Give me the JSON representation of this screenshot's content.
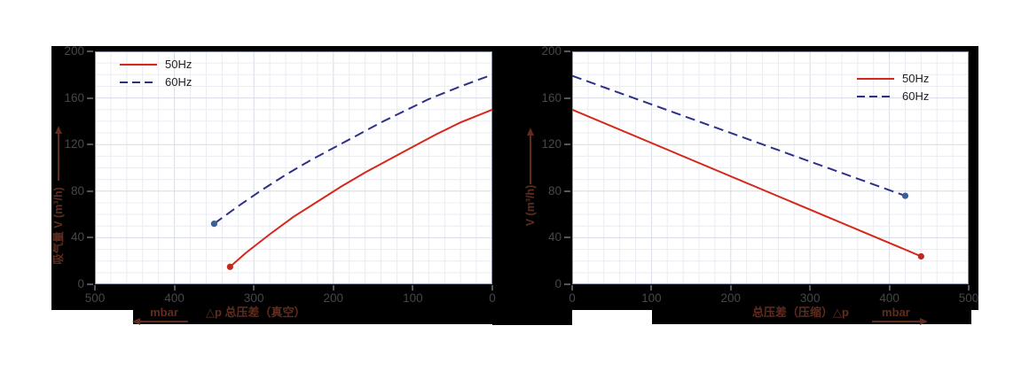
{
  "frame_color": "#000000",
  "tick_color": "#46474b",
  "axis_label_color": "#5f2d1e",
  "chart_data": [
    {
      "type": "line",
      "title": "",
      "ylabel": "吸气量 V (m³/h)",
      "x_label": "△p 总压差（真空）",
      "x_unit": "mbar",
      "x_direction": "left",
      "xlim": [
        500,
        0
      ],
      "ylim": [
        0,
        200
      ],
      "x_ticks": [
        500,
        400,
        300,
        200,
        100,
        0
      ],
      "y_ticks": [
        0,
        40,
        80,
        120,
        160,
        200
      ],
      "x_minor": 20,
      "y_minor": 10,
      "grid": "minor+major",
      "legend_position": "top-left",
      "series": [
        {
          "name": "50Hz",
          "color": "#d5281b",
          "style": "solid",
          "marker": [
            330,
            15
          ],
          "marker_color": "#c0281e",
          "points": [
            [
              330,
              15
            ],
            [
              310,
              27
            ],
            [
              280,
              43
            ],
            [
              250,
              58
            ],
            [
              220,
              71
            ],
            [
              190,
              84
            ],
            [
              160,
              96
            ],
            [
              130,
              107
            ],
            [
              100,
              118
            ],
            [
              70,
              129
            ],
            [
              40,
              139
            ],
            [
              0,
              150
            ]
          ]
        },
        {
          "name": "60Hz",
          "color": "#2d3186",
          "style": "dashed",
          "marker": [
            350,
            52
          ],
          "marker_color": "#3c5e99",
          "points": [
            [
              350,
              52
            ],
            [
              320,
              67
            ],
            [
              290,
              81
            ],
            [
              260,
              94
            ],
            [
              230,
              106
            ],
            [
              200,
              117
            ],
            [
              170,
              128
            ],
            [
              140,
              139
            ],
            [
              110,
              149
            ],
            [
              80,
              159
            ],
            [
              40,
              170
            ],
            [
              0,
              180
            ]
          ]
        }
      ]
    },
    {
      "type": "line",
      "title": "",
      "ylabel": "V (m³/h)",
      "x_label": "总压差（压缩）△p",
      "x_unit": "mbar",
      "x_direction": "right",
      "xlim": [
        0,
        500
      ],
      "ylim": [
        0,
        200
      ],
      "x_ticks": [
        0,
        100,
        200,
        300,
        400,
        500
      ],
      "y_ticks": [
        0,
        40,
        80,
        120,
        160,
        200
      ],
      "x_minor": 20,
      "y_minor": 10,
      "grid": "minor+major",
      "legend_position": "top-right",
      "series": [
        {
          "name": "50Hz",
          "color": "#d5281b",
          "style": "solid",
          "marker": [
            440,
            24
          ],
          "marker_color": "#c0281e",
          "points": [
            [
              0,
              150
            ],
            [
              440,
              24
            ]
          ]
        },
        {
          "name": "60Hz",
          "color": "#2d3186",
          "style": "dashed",
          "marker": [
            420,
            76
          ],
          "marker_color": "#3c5e99",
          "points": [
            [
              0,
              179
            ],
            [
              420,
              76
            ]
          ]
        }
      ]
    }
  ]
}
